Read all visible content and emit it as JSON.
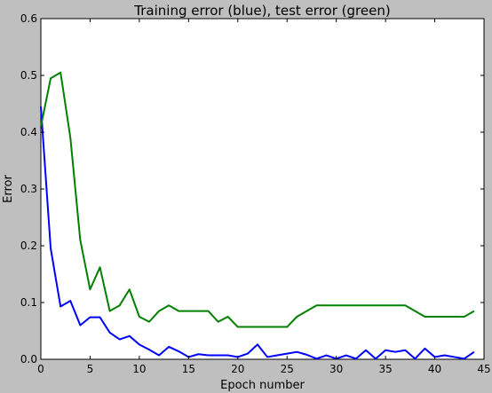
{
  "chart_data": {
    "type": "line",
    "title": "Training error (blue), test error (green)",
    "xlabel": "Epoch number",
    "ylabel": "Error",
    "xlim": [
      0,
      45
    ],
    "ylim": [
      0,
      0.6
    ],
    "xticks": [
      0,
      5,
      10,
      15,
      20,
      25,
      30,
      35,
      40,
      45
    ],
    "yticks": [
      0.0,
      0.1,
      0.2,
      0.3,
      0.4,
      0.5,
      0.6
    ],
    "grid": false,
    "legend": "none",
    "x": [
      0,
      1,
      2,
      3,
      4,
      5,
      6,
      7,
      8,
      9,
      10,
      11,
      12,
      13,
      14,
      15,
      16,
      17,
      18,
      19,
      20,
      21,
      22,
      23,
      24,
      25,
      26,
      27,
      28,
      29,
      30,
      31,
      32,
      33,
      34,
      35,
      36,
      37,
      38,
      39,
      40,
      41,
      42,
      43,
      44
    ],
    "series": [
      {
        "color": "#0000ff",
        "values": [
          0.445,
          0.195,
          0.093,
          0.103,
          0.06,
          0.074,
          0.074,
          0.047,
          0.035,
          0.041,
          0.026,
          0.017,
          0.007,
          0.022,
          0.014,
          0.004,
          0.009,
          0.007,
          0.007,
          0.007,
          0.004,
          0.01,
          0.026,
          0.004,
          0.007,
          0.01,
          0.013,
          0.008,
          0.001,
          0.007,
          0.001,
          0.007,
          0.001,
          0.016,
          0.001,
          0.016,
          0.013,
          0.016,
          0.001,
          0.019,
          0.004,
          0.007,
          0.004,
          0.001,
          0.013
        ]
      },
      {
        "color": "#008000",
        "values": [
          0.41,
          0.495,
          0.505,
          0.39,
          0.21,
          0.123,
          0.162,
          0.085,
          0.095,
          0.123,
          0.075,
          0.066,
          0.085,
          0.095,
          0.085,
          0.085,
          0.085,
          0.085,
          0.066,
          0.075,
          0.057,
          0.057,
          0.057,
          0.057,
          0.057,
          0.057,
          0.075,
          0.085,
          0.095,
          0.095,
          0.095,
          0.095,
          0.095,
          0.095,
          0.095,
          0.095,
          0.095,
          0.095,
          0.085,
          0.075,
          0.075,
          0.075,
          0.075,
          0.075,
          0.085
        ]
      }
    ]
  }
}
